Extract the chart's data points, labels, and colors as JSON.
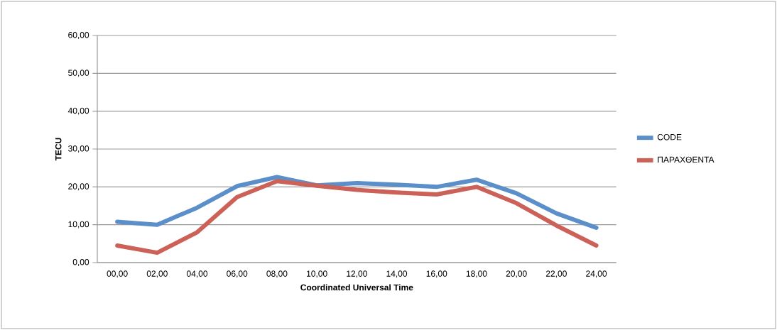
{
  "chart_data": {
    "type": "line",
    "xlabel": "Coordinated Universal Time",
    "ylabel": "TECU",
    "categories": [
      "00,00",
      "02,00",
      "04,00",
      "06,00",
      "08,00",
      "10,00",
      "12,00",
      "14,00",
      "16,00",
      "18,00",
      "20,00",
      "22,00",
      "24,00"
    ],
    "series": [
      {
        "name": "CODE",
        "color": "#5b8fc9",
        "values": [
          10.8,
          10.0,
          14.5,
          20.2,
          22.6,
          20.4,
          21.0,
          20.6,
          20.0,
          21.9,
          18.3,
          13.0,
          9.2
        ]
      },
      {
        "name": "ΠΑΡΑΧΘΕΝΤΑ",
        "color": "#cc6158",
        "values": [
          4.5,
          2.6,
          8.0,
          17.3,
          21.5,
          20.3,
          19.2,
          18.5,
          18.0,
          20.0,
          15.7,
          9.8,
          4.5
        ]
      }
    ],
    "ylim": [
      0,
      60
    ],
    "yticks": [
      {
        "value": 0,
        "label": "0,00"
      },
      {
        "value": 10,
        "label": "10,00"
      },
      {
        "value": 20,
        "label": "20,00"
      },
      {
        "value": 30,
        "label": "30,00"
      },
      {
        "value": 40,
        "label": "40,00"
      },
      {
        "value": 50,
        "label": "50,00"
      },
      {
        "value": 60,
        "label": "60,00"
      }
    ],
    "grid": "y",
    "legend": "right",
    "marker": "none",
    "line_style": "solid"
  }
}
